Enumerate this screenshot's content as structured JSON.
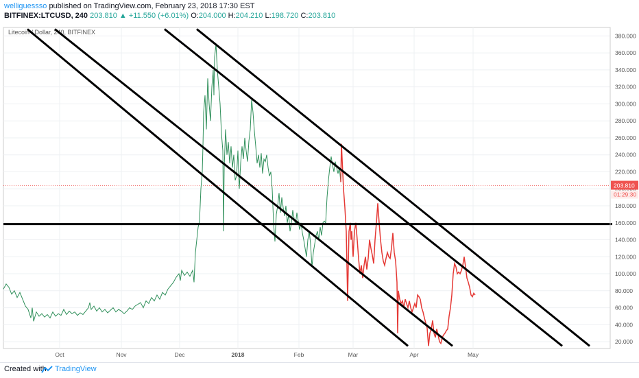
{
  "header": {
    "user": "welliguessso",
    "published": "published on TradingView.com, February 23, 2018 17:30 EST",
    "symbol": "BITFINEX:LTCUSD, 240",
    "last": "203.810",
    "change": "+11.550 (+6.01%)",
    "o_label": "O:",
    "o": "204.000",
    "h_label": "H:",
    "h": "204.210",
    "l_label": "L:",
    "l": "198.720",
    "c_label": "C:",
    "c": "203.810"
  },
  "chart_data": {
    "type": "line",
    "title": "Litecoin / Dollar, 240, BITFINEX",
    "ylim": [
      12,
      390
    ],
    "y_ticks": [
      "380.000",
      "360.000",
      "340.000",
      "320.000",
      "300.000",
      "280.000",
      "260.000",
      "240.000",
      "220.000",
      "200.000",
      "180.000",
      "160.000",
      "140.000",
      "120.000",
      "100.000",
      "80.000",
      "60.000",
      "40.000",
      "20.000"
    ],
    "x_ticks": [
      "Oct",
      "Nov",
      "Dec",
      "2018",
      "Feb",
      "Mar",
      "Apr",
      "May"
    ],
    "last_price_label": "203.810",
    "countdown_label": "01:29:30",
    "colors": {
      "price": "#2f8f5a",
      "projection": "#e53935",
      "lines": "#000000",
      "price_label": "#ef5350"
    },
    "series": [
      {
        "values": [
          [
            0,
            82
          ],
          [
            4,
            88
          ],
          [
            8,
            84
          ],
          [
            12,
            76
          ],
          [
            16,
            80
          ],
          [
            20,
            72
          ],
          [
            24,
            78
          ],
          [
            28,
            70
          ],
          [
            32,
            62
          ],
          [
            36,
            58
          ],
          [
            40,
            48
          ],
          [
            42,
            60
          ],
          [
            44,
            44
          ],
          [
            48,
            55
          ],
          [
            52,
            50
          ],
          [
            56,
            53
          ],
          [
            60,
            49
          ],
          [
            64,
            52
          ],
          [
            68,
            48
          ],
          [
            72,
            55
          ],
          [
            76,
            50
          ],
          [
            80,
            53
          ],
          [
            84,
            51
          ],
          [
            88,
            58
          ],
          [
            92,
            52
          ],
          [
            96,
            56
          ],
          [
            100,
            53
          ],
          [
            104,
            55
          ],
          [
            108,
            51
          ],
          [
            112,
            54
          ],
          [
            116,
            52
          ],
          [
            120,
            56
          ],
          [
            124,
            60
          ],
          [
            126,
            66
          ],
          [
            128,
            58
          ],
          [
            132,
            62
          ],
          [
            136,
            56
          ],
          [
            140,
            60
          ],
          [
            144,
            55
          ],
          [
            148,
            58
          ],
          [
            152,
            54
          ],
          [
            156,
            57
          ],
          [
            160,
            60
          ],
          [
            164,
            55
          ],
          [
            168,
            58
          ],
          [
            172,
            56
          ],
          [
            176,
            53
          ],
          [
            180,
            56
          ],
          [
            184,
            60
          ],
          [
            188,
            58
          ],
          [
            192,
            62
          ],
          [
            196,
            64
          ],
          [
            200,
            66
          ],
          [
            204,
            60
          ],
          [
            208,
            68
          ],
          [
            212,
            65
          ],
          [
            216,
            72
          ],
          [
            220,
            68
          ],
          [
            224,
            75
          ],
          [
            228,
            70
          ],
          [
            232,
            78
          ],
          [
            236,
            75
          ],
          [
            240,
            82
          ],
          [
            244,
            86
          ],
          [
            248,
            90
          ],
          [
            252,
            96
          ],
          [
            256,
            100
          ],
          [
            258,
            92
          ],
          [
            260,
            104
          ],
          [
            264,
            98
          ],
          [
            268,
            102
          ],
          [
            272,
            97
          ],
          [
            276,
            104
          ],
          [
            278,
            90
          ],
          [
            280,
            125
          ],
          [
            282,
            140
          ],
          [
            284,
            155
          ],
          [
            286,
            162
          ],
          [
            288,
            200
          ],
          [
            290,
            220
          ],
          [
            291,
            250
          ],
          [
            292,
            290
          ],
          [
            294,
            310
          ],
          [
            296,
            270
          ],
          [
            298,
            330
          ],
          [
            300,
            300
          ],
          [
            302,
            280
          ],
          [
            304,
            320
          ],
          [
            306,
            340
          ],
          [
            307,
            310
          ],
          [
            308,
            355
          ],
          [
            310,
            370
          ],
          [
            312,
            340
          ],
          [
            314,
            320
          ],
          [
            316,
            300
          ],
          [
            318,
            265
          ],
          [
            320,
            245
          ],
          [
            321,
            150
          ],
          [
            322,
            225
          ],
          [
            324,
            270
          ],
          [
            326,
            240
          ],
          [
            328,
            255
          ],
          [
            330,
            230
          ],
          [
            332,
            250
          ],
          [
            334,
            225
          ],
          [
            336,
            240
          ],
          [
            338,
            210
          ],
          [
            340,
            215
          ],
          [
            342,
            245
          ],
          [
            344,
            200
          ],
          [
            346,
            230
          ],
          [
            348,
            250
          ],
          [
            350,
            235
          ],
          [
            352,
            260
          ],
          [
            354,
            245
          ],
          [
            356,
            232
          ],
          [
            358,
            256
          ],
          [
            360,
            270
          ],
          [
            362,
            305
          ],
          [
            364,
            290
          ],
          [
            366,
            268
          ],
          [
            368,
            250
          ],
          [
            370,
            230
          ],
          [
            372,
            240
          ],
          [
            374,
            225
          ],
          [
            376,
            242
          ],
          [
            378,
            218
          ],
          [
            380,
            235
          ],
          [
            382,
            232
          ],
          [
            384,
            240
          ],
          [
            386,
            225
          ],
          [
            388,
            215
          ],
          [
            390,
            220
          ],
          [
            392,
            200
          ],
          [
            394,
            160
          ],
          [
            396,
            138
          ],
          [
            398,
            170
          ],
          [
            400,
            180
          ],
          [
            402,
            195
          ],
          [
            404,
            172
          ],
          [
            406,
            190
          ],
          [
            408,
            178
          ],
          [
            410,
            168
          ],
          [
            412,
            180
          ],
          [
            414,
            160
          ],
          [
            416,
            170
          ],
          [
            418,
            150
          ],
          [
            420,
            160
          ],
          [
            422,
            175
          ],
          [
            424,
            165
          ],
          [
            426,
            158
          ],
          [
            428,
            172
          ],
          [
            430,
            162
          ],
          [
            432,
            152
          ],
          [
            434,
            160
          ],
          [
            436,
            148
          ],
          [
            438,
            140
          ],
          [
            440,
            130
          ],
          [
            442,
            120
          ],
          [
            444,
            140
          ],
          [
            446,
            150
          ],
          [
            448,
            135
          ],
          [
            450,
            108
          ],
          [
            452,
            125
          ],
          [
            454,
            135
          ],
          [
            456,
            145
          ],
          [
            458,
            150
          ],
          [
            460,
            140
          ],
          [
            462,
            155
          ],
          [
            464,
            145
          ],
          [
            466,
            160
          ],
          [
            468,
            162
          ],
          [
            470,
            160
          ],
          [
            472,
            190
          ],
          [
            474,
            210
          ],
          [
            476,
            225
          ],
          [
            478,
            238
          ],
          [
            480,
            228
          ],
          [
            482,
            220
          ],
          [
            484,
            232
          ],
          [
            486,
            225
          ],
          [
            488,
            218
          ],
          [
            490,
            225
          ],
          [
            492,
            208
          ]
        ]
      },
      {
        "values": [
          [
            492,
            208
          ],
          [
            493,
            253
          ],
          [
            494,
            235
          ],
          [
            496,
            200
          ],
          [
            498,
            178
          ],
          [
            500,
            150
          ],
          [
            501,
            110
          ],
          [
            502,
            68
          ],
          [
            503,
            110
          ],
          [
            504,
            150
          ],
          [
            506,
            160
          ],
          [
            507,
            140
          ],
          [
            508,
            150
          ],
          [
            510,
            120
          ],
          [
            512,
            150
          ],
          [
            514,
            160
          ],
          [
            516,
            140
          ],
          [
            518,
            118
          ],
          [
            520,
            100
          ],
          [
            522,
            110
          ],
          [
            524,
            95
          ],
          [
            526,
            110
          ],
          [
            528,
            120
          ],
          [
            530,
            105
          ],
          [
            532,
            118
          ],
          [
            534,
            140
          ],
          [
            536,
            130
          ],
          [
            538,
            122
          ],
          [
            540,
            112
          ],
          [
            542,
            140
          ],
          [
            544,
            160
          ],
          [
            546,
            183
          ],
          [
            548,
            160
          ],
          [
            550,
            140
          ],
          [
            552,
            125
          ],
          [
            554,
            115
          ],
          [
            556,
            110
          ],
          [
            558,
            118
          ],
          [
            560,
            125
          ],
          [
            562,
            120
          ],
          [
            564,
            118
          ],
          [
            566,
            130
          ],
          [
            568,
            148
          ],
          [
            570,
            125
          ],
          [
            572,
            115
          ],
          [
            574,
            90
          ],
          [
            575,
            30
          ],
          [
            576,
            80
          ],
          [
            578,
            70
          ],
          [
            580,
            65
          ],
          [
            582,
            68
          ],
          [
            584,
            60
          ],
          [
            586,
            70
          ],
          [
            588,
            65
          ],
          [
            590,
            60
          ],
          [
            592,
            68
          ],
          [
            594,
            60
          ],
          [
            596,
            55
          ],
          [
            598,
            60
          ],
          [
            600,
            65
          ],
          [
            602,
            60
          ],
          [
            604,
            75
          ],
          [
            606,
            73
          ],
          [
            608,
            70
          ],
          [
            610,
            60
          ],
          [
            612,
            55
          ],
          [
            614,
            48
          ],
          [
            616,
            42
          ],
          [
            618,
            36
          ],
          [
            620,
            15
          ],
          [
            622,
            30
          ],
          [
            624,
            35
          ],
          [
            626,
            45
          ],
          [
            628,
            30
          ],
          [
            630,
            25
          ],
          [
            632,
            35
          ],
          [
            634,
            28
          ],
          [
            636,
            20
          ],
          [
            638,
            18
          ],
          [
            640,
            25
          ],
          [
            642,
            28
          ],
          [
            644,
            30
          ],
          [
            646,
            33
          ],
          [
            648,
            35
          ],
          [
            650,
            50
          ],
          [
            652,
            60
          ],
          [
            654,
            75
          ],
          [
            656,
            100
          ],
          [
            658,
            112
          ],
          [
            660,
            108
          ],
          [
            662,
            100
          ],
          [
            664,
            102
          ],
          [
            666,
            100
          ],
          [
            668,
            104
          ],
          [
            670,
            110
          ],
          [
            672,
            120
          ],
          [
            674,
            108
          ],
          [
            676,
            95
          ],
          [
            678,
            90
          ],
          [
            680,
            84
          ],
          [
            682,
            75
          ],
          [
            684,
            73
          ],
          [
            686,
            77
          ],
          [
            688,
            75
          ]
        ]
      }
    ],
    "trendlines": [
      [
        [
          35,
          388
        ],
        [
          590,
          15
        ]
      ],
      [
        [
          75,
          388
        ],
        [
          655,
          15
        ]
      ],
      [
        [
          235,
          388
        ],
        [
          815,
          15
        ]
      ],
      [
        [
          282,
          388
        ],
        [
          855,
          15
        ]
      ],
      [
        [
          0,
          158.5
        ],
        [
          888,
          158.5
        ]
      ]
    ]
  }
}
